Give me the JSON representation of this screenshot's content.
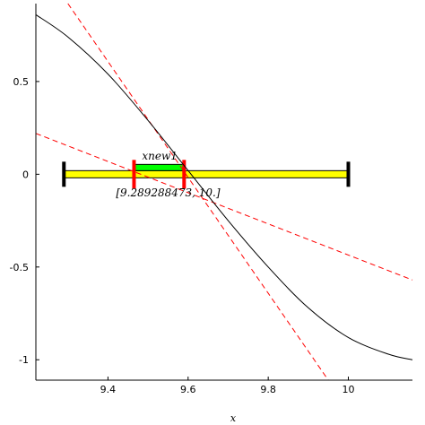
{
  "chart_data": {
    "type": "line",
    "xlabel": "x",
    "ylabel": "",
    "xlim": [
      9.22,
      10.16
    ],
    "ylim": [
      -1.11,
      0.92
    ],
    "x_ticks": [
      9.4,
      9.6,
      9.8,
      10
    ],
    "x_tick_labels": [
      "9.4",
      "9.6",
      "9.8",
      "10"
    ],
    "y_ticks": [
      -1,
      -0.5,
      0,
      0.5
    ],
    "y_tick_labels": [
      "-1",
      "-0.5",
      "0",
      "0.5"
    ],
    "axis_cross": {
      "x": 9.22,
      "y": 0
    },
    "grid": false,
    "legend": "none",
    "curve": {
      "color": "#000000",
      "x": [
        9.22,
        9.3,
        9.4,
        9.5,
        9.6,
        9.7,
        9.8,
        9.9,
        10.0,
        10.1,
        10.16
      ],
      "y": [
        0.86,
        0.74,
        0.54,
        0.29,
        0.02,
        -0.25,
        -0.5,
        -0.72,
        -0.88,
        -0.97,
        -1.0
      ]
    },
    "tangent_lines": [
      {
        "color": "#ff0000",
        "x": [
          9.3,
          9.95
        ],
        "y": [
          0.92,
          -1.11
        ]
      },
      {
        "color": "#ff0000",
        "x": [
          9.22,
          10.16
        ],
        "y": [
          0.22,
          -0.57
        ]
      }
    ],
    "intervals": [
      {
        "kind": "outer",
        "x": [
          9.29,
          10.0
        ],
        "fill": "#ffff00",
        "end_color": "#000000"
      },
      {
        "kind": "inner",
        "x": [
          9.465,
          9.59
        ],
        "fill": "#00ff00",
        "end_color": "#ff0000"
      }
    ],
    "annotations": [
      {
        "text": "xnew1",
        "x": 9.485,
        "y": 0.08
      },
      {
        "text": "[9.289288473, 10.]",
        "x": 9.55,
        "y": -0.12
      }
    ]
  }
}
